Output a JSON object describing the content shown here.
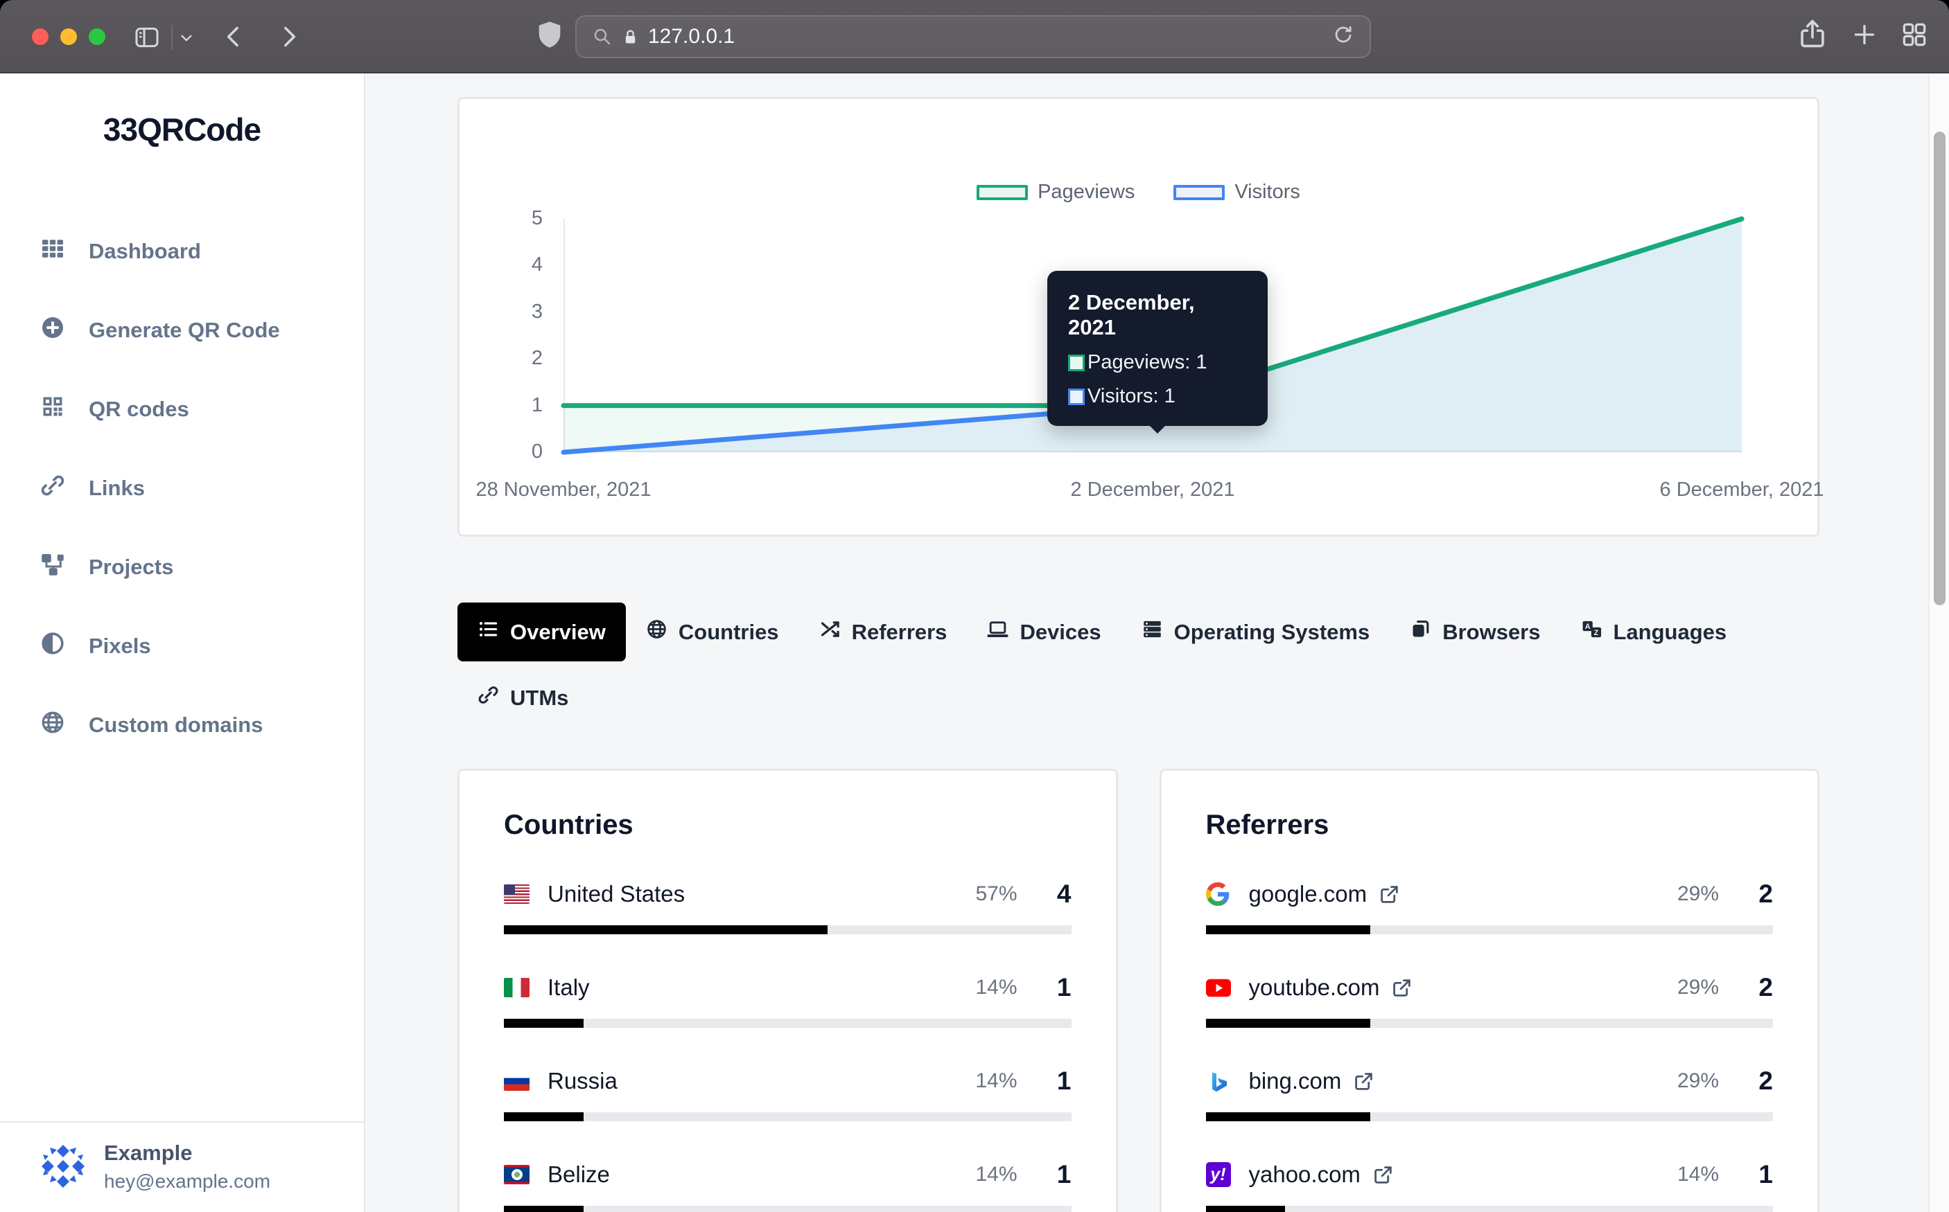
{
  "browser": {
    "url": "127.0.0.1"
  },
  "sidebar": {
    "brand": "33QRCode",
    "items": [
      {
        "label": "Dashboard",
        "icon": "dashboard-grid-icon"
      },
      {
        "label": "Generate QR Code",
        "icon": "plus-circle-icon"
      },
      {
        "label": "QR codes",
        "icon": "qr-code-icon"
      },
      {
        "label": "Links",
        "icon": "link-icon"
      },
      {
        "label": "Projects",
        "icon": "sitemap-icon"
      },
      {
        "label": "Pixels",
        "icon": "contrast-icon"
      },
      {
        "label": "Custom domains",
        "icon": "globe-icon"
      }
    ],
    "user": {
      "name": "Example",
      "email": "hey@example.com"
    }
  },
  "chart_data": {
    "type": "area",
    "x": [
      "28 November, 2021",
      "2 December, 2021",
      "6 December, 2021"
    ],
    "series": [
      {
        "name": "Pageviews",
        "values": [
          1,
          1,
          5
        ],
        "color": "#17aa7a",
        "area_fill": "rgba(23,170,122,0.07)",
        "swatch_fill": "#e9f7f1"
      },
      {
        "name": "Visitors",
        "values": [
          0,
          1,
          5
        ],
        "color": "#4285f4",
        "area_fill": "rgba(66,133,244,0.09)",
        "swatch_fill": "#edf2fd"
      }
    ],
    "ylim": [
      0,
      5
    ],
    "yticks": [
      5,
      4,
      3,
      2,
      1,
      0
    ],
    "grid": false,
    "legend_position": "top-center"
  },
  "tooltip": {
    "title": "2 December, 2021",
    "rows": [
      {
        "text": "Pageviews: 1",
        "series": 0
      },
      {
        "text": "Visitors: 1",
        "series": 1
      }
    ]
  },
  "tabs": [
    {
      "label": "Overview",
      "icon": "list-icon",
      "active": true
    },
    {
      "label": "Countries",
      "icon": "globe-icon"
    },
    {
      "label": "Referrers",
      "icon": "shuffle-icon"
    },
    {
      "label": "Devices",
      "icon": "laptop-icon"
    },
    {
      "label": "Operating Systems",
      "icon": "server-icon"
    },
    {
      "label": "Browsers",
      "icon": "app-window-icon"
    },
    {
      "label": "Languages",
      "icon": "translate-icon"
    },
    {
      "label": "UTMs",
      "icon": "link-icon"
    }
  ],
  "countries": {
    "title": "Countries",
    "rows": [
      {
        "name": "United States",
        "flag": "us",
        "percent": 57,
        "percent_label": "57%",
        "count": "4"
      },
      {
        "name": "Italy",
        "flag": "it",
        "percent": 14,
        "percent_label": "14%",
        "count": "1"
      },
      {
        "name": "Russia",
        "flag": "ru",
        "percent": 14,
        "percent_label": "14%",
        "count": "1"
      },
      {
        "name": "Belize",
        "flag": "bz",
        "percent": 14,
        "percent_label": "14%",
        "count": "1"
      }
    ]
  },
  "referrers": {
    "title": "Referrers",
    "rows": [
      {
        "name": "google.com",
        "icon": "google-favicon",
        "percent": 29,
        "percent_label": "29%",
        "count": "2"
      },
      {
        "name": "youtube.com",
        "icon": "youtube-favicon",
        "percent": 29,
        "percent_label": "29%",
        "count": "2"
      },
      {
        "name": "bing.com",
        "icon": "bing-favicon",
        "percent": 29,
        "percent_label": "29%",
        "count": "2"
      },
      {
        "name": "yahoo.com",
        "icon": "yahoo-favicon",
        "percent": 14,
        "percent_label": "14%",
        "count": "1"
      }
    ]
  }
}
